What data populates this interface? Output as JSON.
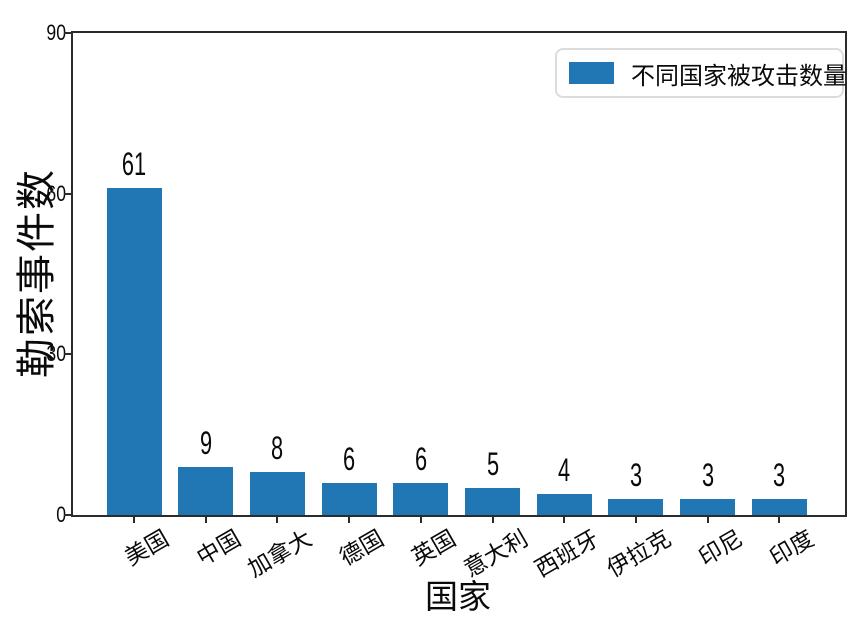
{
  "chart_data": {
    "type": "bar",
    "title": "",
    "xlabel": "国家",
    "ylabel": "勒索事件数",
    "categories": [
      "美国",
      "中国",
      "加拿大",
      "德国",
      "英国",
      "意大利",
      "西班牙",
      "伊拉克",
      "印尼",
      "印度"
    ],
    "values": [
      61,
      9,
      8,
      6,
      6,
      5,
      4,
      3,
      3,
      3
    ],
    "bar_value_labels": [
      "61",
      "9",
      "8",
      "6",
      "6",
      "5",
      "4",
      "3",
      "3",
      "3"
    ],
    "ylim": [
      0,
      90
    ],
    "yticks": [
      0,
      30,
      60,
      90
    ],
    "grid": false,
    "legend": {
      "label": "不同国家被攻击数量",
      "position": "upper-right"
    }
  },
  "colors": {
    "bar": "#2077b4",
    "axis": "#2b2b2b",
    "text": "#0a0a0a",
    "legend_border": "#dcdcdc",
    "background": "#ffffff"
  }
}
